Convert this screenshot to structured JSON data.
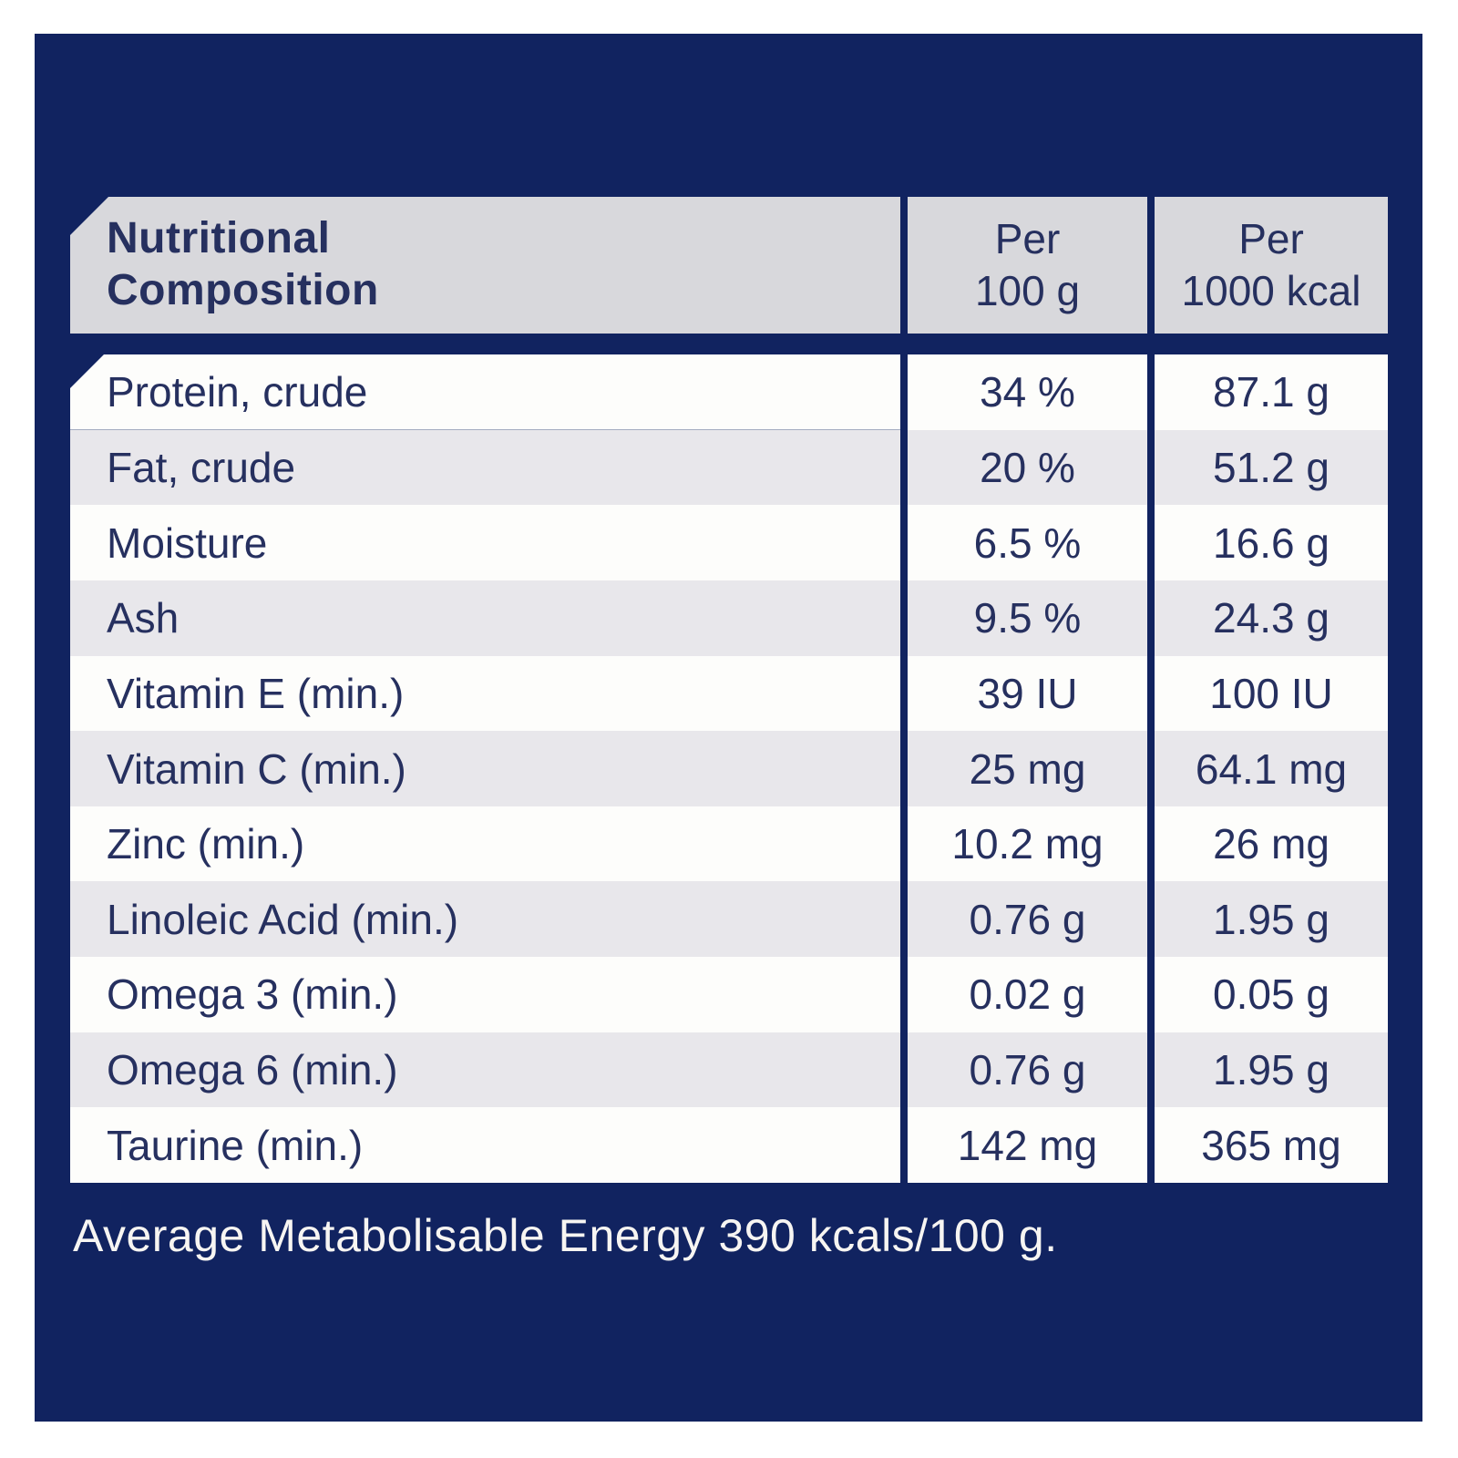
{
  "colors": {
    "panel_navy": "#112360",
    "header_gray": "#d8d8dc",
    "row_white": "#fdfdfb",
    "row_gray": "#e8e7eb",
    "text_navy": "#26305f",
    "footer_text": "#f7f5f2",
    "page_background": "#ffffff"
  },
  "table": {
    "title_line1": "Nutritional",
    "title_line2": "Composition",
    "columns": [
      {
        "line1": "Per",
        "line2": "100 g"
      },
      {
        "line1": "Per",
        "line2": "1000 kcal"
      }
    ],
    "rows": [
      {
        "label": "Protein, crude",
        "per_100g": "34 %",
        "per_1000kcal": "87.1 g"
      },
      {
        "label": "Fat, crude",
        "per_100g": "20 %",
        "per_1000kcal": "51.2 g"
      },
      {
        "label": "Moisture",
        "per_100g": "6.5 %",
        "per_1000kcal": "16.6 g"
      },
      {
        "label": "Ash",
        "per_100g": "9.5 %",
        "per_1000kcal": "24.3 g"
      },
      {
        "label": "Vitamin E (min.)",
        "per_100g": "39 IU",
        "per_1000kcal": "100 IU"
      },
      {
        "label": "Vitamin C (min.)",
        "per_100g": "25 mg",
        "per_1000kcal": "64.1 mg"
      },
      {
        "label": "Zinc (min.)",
        "per_100g": "10.2 mg",
        "per_1000kcal": "26 mg"
      },
      {
        "label": "Linoleic Acid (min.)",
        "per_100g": "0.76 g",
        "per_1000kcal": "1.95 g"
      },
      {
        "label": "Omega 3 (min.)",
        "per_100g": "0.02 g",
        "per_1000kcal": "0.05 g"
      },
      {
        "label": "Omega 6 (min.)",
        "per_100g": "0.76 g",
        "per_1000kcal": "1.95 g"
      },
      {
        "label": "Taurine (min.)",
        "per_100g": "142 mg",
        "per_1000kcal": "365 mg"
      }
    ]
  },
  "footer": {
    "text": "Average Metabolisable Energy 390 kcals/100 g."
  }
}
